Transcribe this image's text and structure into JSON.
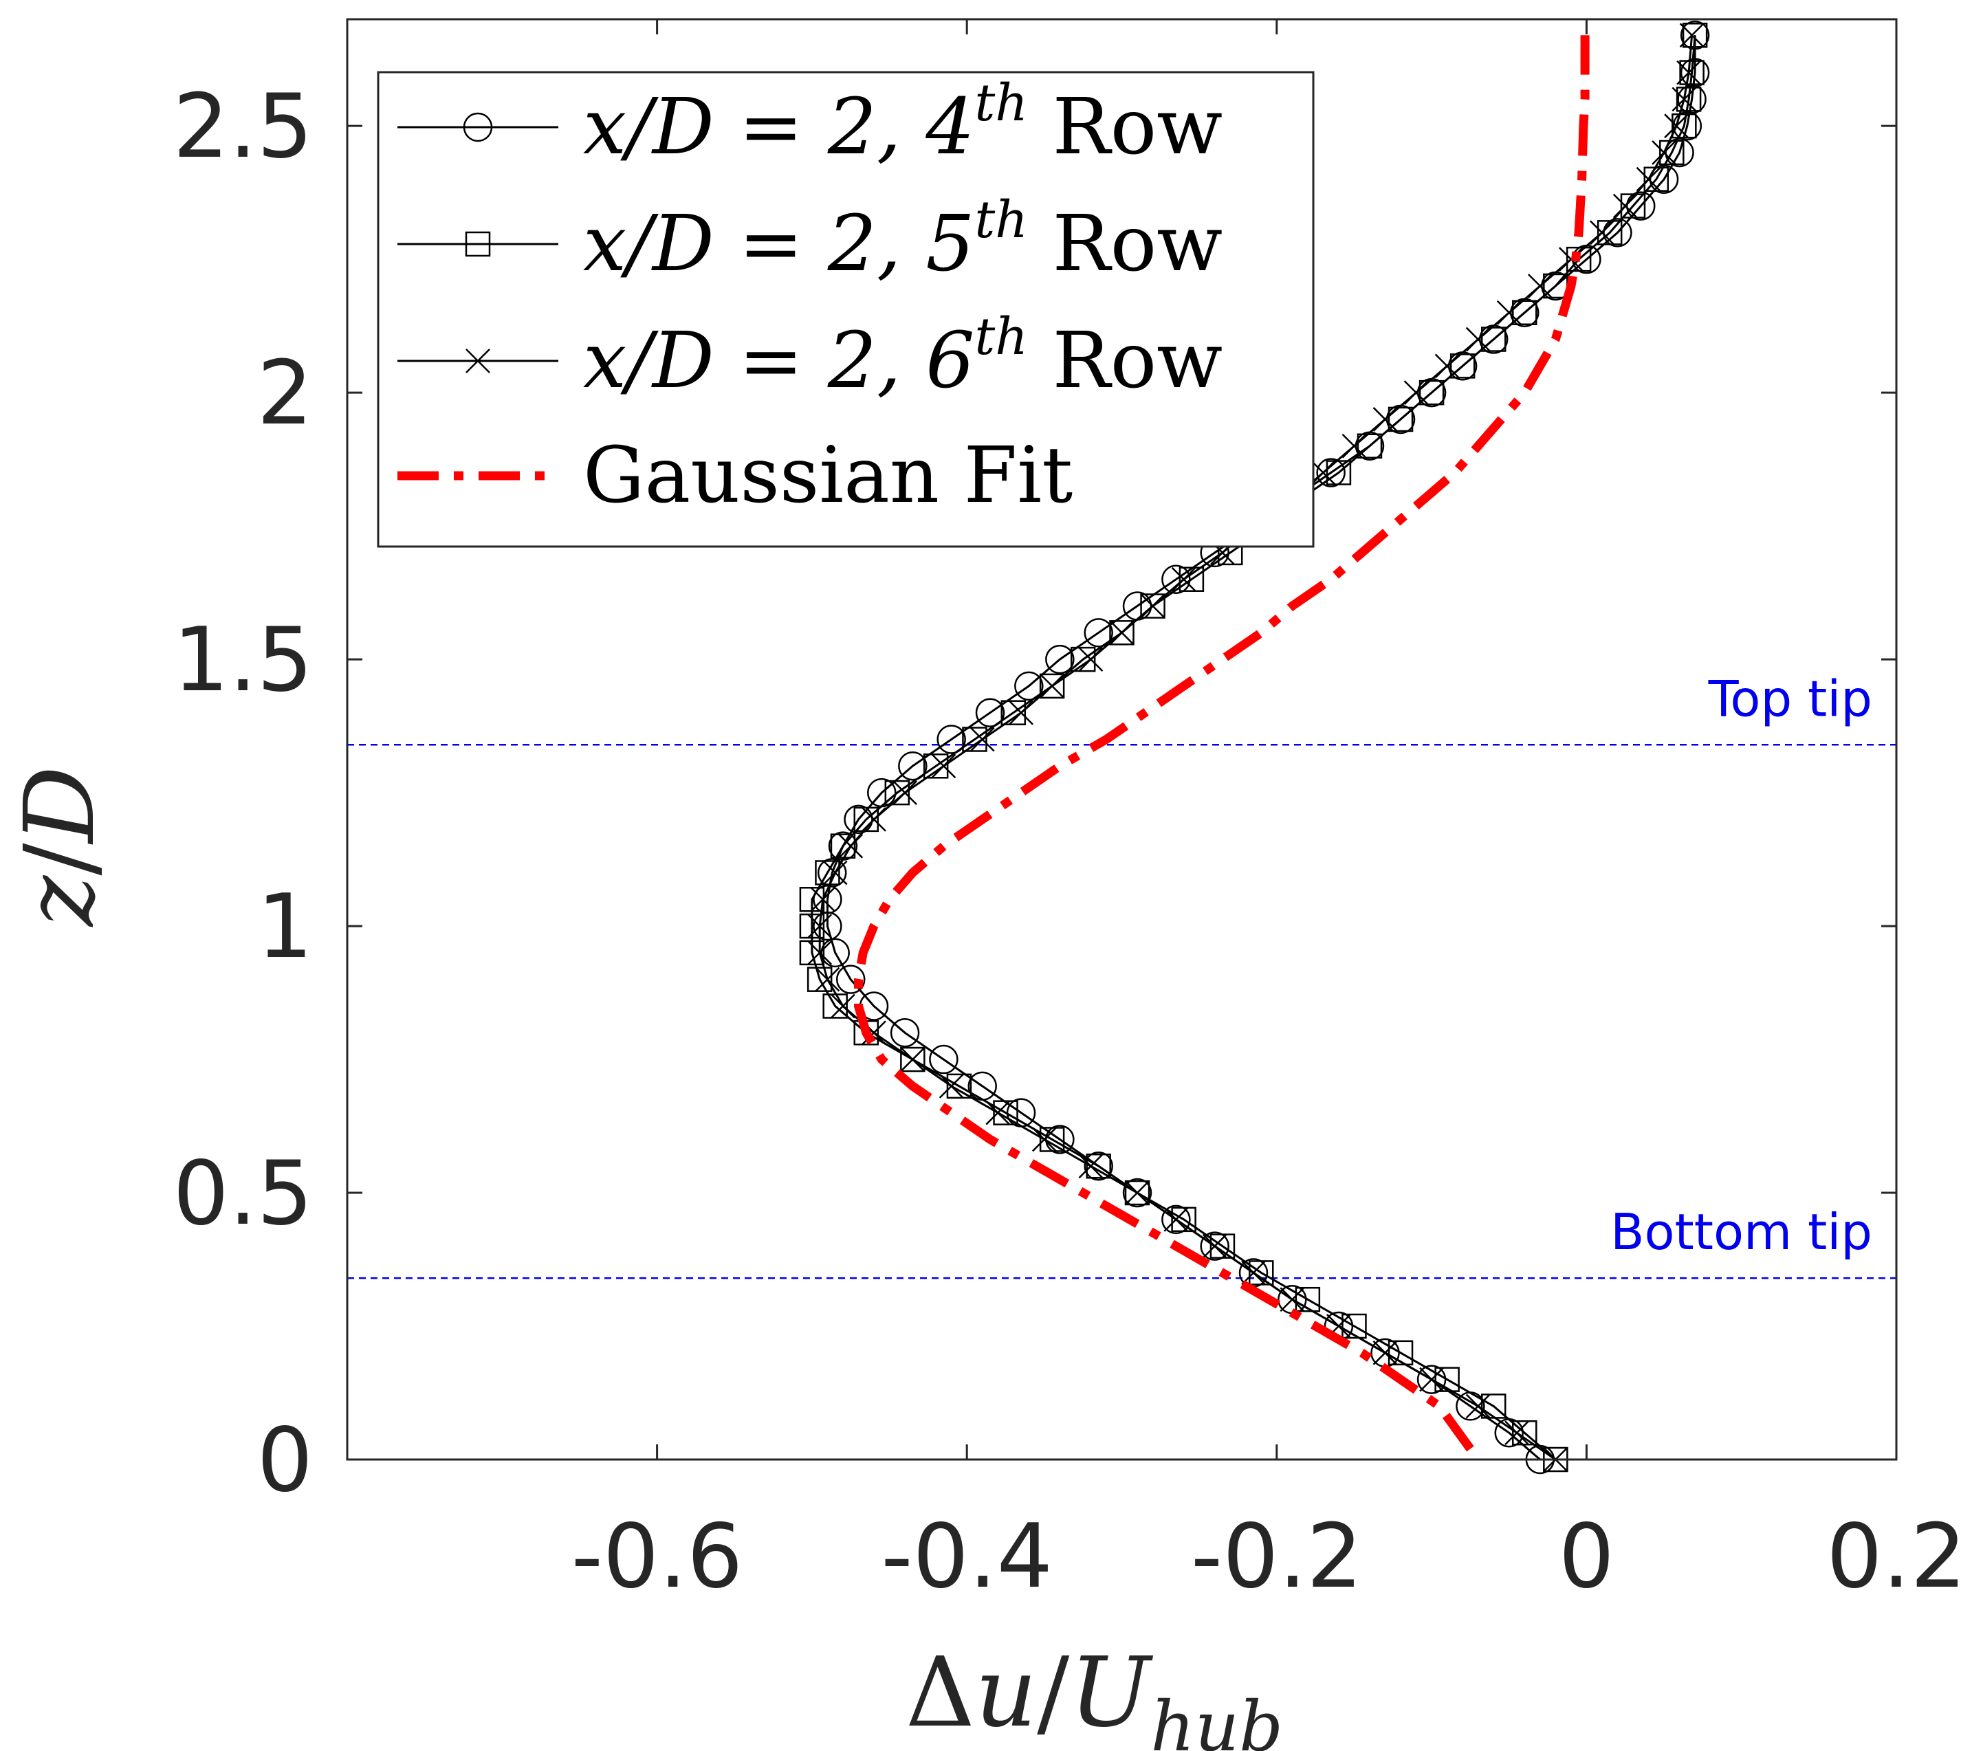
{
  "chart_data": {
    "type": "line",
    "title": "",
    "xlabel": "Δu/U_hub",
    "ylabel": "z/D",
    "xlabel_parts": {
      "main": "Δ",
      "var": "u",
      "slash": "/",
      "base": "U",
      "sub": "hub"
    },
    "ylabel_parts": {
      "num": "z",
      "slash": "/",
      "den": "D"
    },
    "xlim": [
      -0.8,
      0.2
    ],
    "ylim": [
      0,
      2.7
    ],
    "xticks": [
      -0.6,
      -0.4,
      -0.2,
      0,
      0.2
    ],
    "xtick_labels": [
      "-0.6",
      "-0.4",
      "-0.2",
      "0",
      "0.2"
    ],
    "yticks": [
      0,
      0.5,
      1,
      1.5,
      2,
      2.5
    ],
    "ytick_labels": [
      "0",
      "0.5",
      "1",
      "1.5",
      "2",
      "2.5"
    ],
    "grid": false,
    "legend_position": "top-left",
    "reference_lines": [
      {
        "name": "top-tip",
        "label": "Top tip",
        "y": 1.34,
        "color": "#0000ee"
      },
      {
        "name": "bottom-tip",
        "label": "Bottom tip",
        "y": 0.34,
        "color": "#0000ee"
      }
    ],
    "series": [
      {
        "name": "x/D = 2, 4th Row",
        "legend": {
          "pre": "x/D = 2, 4",
          "sup": "th",
          "post": " Row"
        },
        "marker": "circle",
        "color": "#000000",
        "line": "solid",
        "x": [
          -0.03,
          -0.05,
          -0.075,
          -0.1,
          -0.13,
          -0.16,
          -0.19,
          -0.215,
          -0.24,
          -0.265,
          -0.29,
          -0.315,
          -0.34,
          -0.365,
          -0.39,
          -0.415,
          -0.44,
          -0.46,
          -0.475,
          -0.485,
          -0.49,
          -0.49,
          -0.487,
          -0.48,
          -0.47,
          -0.455,
          -0.435,
          -0.41,
          -0.385,
          -0.36,
          -0.34,
          -0.315,
          -0.29,
          -0.265,
          -0.24,
          -0.215,
          -0.19,
          -0.165,
          -0.14,
          -0.12,
          -0.1,
          -0.08,
          -0.06,
          -0.04,
          -0.02,
          0.0,
          0.02,
          0.035,
          0.05,
          0.06,
          0.065,
          0.068,
          0.07,
          0.07
        ],
        "y": [
          0.0,
          0.05,
          0.1,
          0.15,
          0.2,
          0.25,
          0.3,
          0.35,
          0.4,
          0.45,
          0.5,
          0.55,
          0.6,
          0.65,
          0.7,
          0.75,
          0.8,
          0.85,
          0.9,
          0.95,
          1.0,
          1.05,
          1.1,
          1.15,
          1.2,
          1.25,
          1.3,
          1.35,
          1.4,
          1.45,
          1.5,
          1.55,
          1.6,
          1.65,
          1.7,
          1.75,
          1.8,
          1.85,
          1.9,
          1.95,
          2.0,
          2.05,
          2.1,
          2.15,
          2.2,
          2.25,
          2.3,
          2.35,
          2.4,
          2.45,
          2.5,
          2.55,
          2.6,
          2.67
        ]
      },
      {
        "name": "x/D = 2, 5th Row",
        "legend": {
          "pre": "x/D = 2, 5",
          "sup": "th",
          "post": " Row"
        },
        "marker": "square",
        "color": "#000000",
        "line": "solid",
        "x": [
          -0.02,
          -0.04,
          -0.06,
          -0.09,
          -0.12,
          -0.15,
          -0.18,
          -0.21,
          -0.235,
          -0.26,
          -0.29,
          -0.315,
          -0.345,
          -0.375,
          -0.405,
          -0.435,
          -0.465,
          -0.485,
          -0.495,
          -0.5,
          -0.5,
          -0.5,
          -0.49,
          -0.48,
          -0.465,
          -0.445,
          -0.42,
          -0.395,
          -0.37,
          -0.345,
          -0.325,
          -0.3,
          -0.28,
          -0.255,
          -0.23,
          -0.205,
          -0.185,
          -0.16,
          -0.14,
          -0.12,
          -0.1,
          -0.08,
          -0.06,
          -0.04,
          -0.02,
          -0.005,
          0.015,
          0.03,
          0.045,
          0.055,
          0.063,
          0.066,
          0.068,
          0.07
        ],
        "y": [
          0.0,
          0.05,
          0.1,
          0.15,
          0.2,
          0.25,
          0.3,
          0.35,
          0.4,
          0.45,
          0.5,
          0.55,
          0.6,
          0.65,
          0.7,
          0.75,
          0.8,
          0.85,
          0.9,
          0.95,
          1.0,
          1.05,
          1.1,
          1.15,
          1.2,
          1.25,
          1.3,
          1.35,
          1.4,
          1.45,
          1.5,
          1.55,
          1.6,
          1.65,
          1.7,
          1.75,
          1.8,
          1.85,
          1.9,
          1.95,
          2.0,
          2.05,
          2.1,
          2.15,
          2.2,
          2.25,
          2.3,
          2.35,
          2.4,
          2.45,
          2.5,
          2.55,
          2.6,
          2.67
        ]
      },
      {
        "name": "x/D = 2, 6th Row",
        "legend": {
          "pre": "x/D = 2, 6",
          "sup": "th",
          "post": " Row"
        },
        "marker": "x",
        "color": "#000000",
        "line": "solid",
        "x": [
          -0.02,
          -0.045,
          -0.07,
          -0.1,
          -0.13,
          -0.16,
          -0.19,
          -0.215,
          -0.24,
          -0.265,
          -0.29,
          -0.32,
          -0.35,
          -0.38,
          -0.41,
          -0.435,
          -0.46,
          -0.48,
          -0.49,
          -0.495,
          -0.495,
          -0.493,
          -0.485,
          -0.475,
          -0.46,
          -0.44,
          -0.415,
          -0.39,
          -0.365,
          -0.345,
          -0.32,
          -0.3,
          -0.28,
          -0.26,
          -0.235,
          -0.215,
          -0.19,
          -0.17,
          -0.15,
          -0.13,
          -0.11,
          -0.09,
          -0.07,
          -0.05,
          -0.03,
          -0.01,
          0.01,
          0.025,
          0.04,
          0.05,
          0.058,
          0.063,
          0.066,
          0.068
        ],
        "y": [
          0.0,
          0.05,
          0.1,
          0.15,
          0.2,
          0.25,
          0.3,
          0.35,
          0.4,
          0.45,
          0.5,
          0.55,
          0.6,
          0.65,
          0.7,
          0.75,
          0.8,
          0.85,
          0.9,
          0.95,
          1.0,
          1.05,
          1.1,
          1.15,
          1.2,
          1.25,
          1.3,
          1.35,
          1.4,
          1.45,
          1.5,
          1.55,
          1.6,
          1.65,
          1.7,
          1.75,
          1.8,
          1.85,
          1.9,
          1.95,
          2.0,
          2.05,
          2.1,
          2.15,
          2.2,
          2.25,
          2.3,
          2.35,
          2.4,
          2.45,
          2.5,
          2.55,
          2.6,
          2.67
        ]
      },
      {
        "name": "Gaussian Fit",
        "legend": {
          "pre": "Gaussian Fit",
          "sup": "",
          "post": ""
        },
        "marker": "none",
        "color": "#ff0000",
        "line": "dashdot",
        "x": [
          -0.075,
          -0.095,
          -0.12,
          -0.145,
          -0.175,
          -0.205,
          -0.235,
          -0.265,
          -0.295,
          -0.325,
          -0.355,
          -0.385,
          -0.41,
          -0.435,
          -0.455,
          -0.465,
          -0.47,
          -0.47,
          -0.467,
          -0.46,
          -0.45,
          -0.435,
          -0.415,
          -0.39,
          -0.365,
          -0.34,
          -0.31,
          -0.285,
          -0.26,
          -0.235,
          -0.21,
          -0.19,
          -0.165,
          -0.145,
          -0.125,
          -0.105,
          -0.085,
          -0.07,
          -0.055,
          -0.04,
          -0.03,
          -0.02,
          -0.015,
          -0.01,
          -0.007,
          -0.005,
          -0.003,
          -0.002,
          -0.001,
          -0.001,
          -0.001
        ],
        "y": [
          0.02,
          0.1,
          0.15,
          0.2,
          0.25,
          0.3,
          0.35,
          0.4,
          0.45,
          0.5,
          0.55,
          0.6,
          0.65,
          0.7,
          0.75,
          0.8,
          0.85,
          0.9,
          0.95,
          1.0,
          1.05,
          1.1,
          1.15,
          1.2,
          1.25,
          1.3,
          1.35,
          1.4,
          1.45,
          1.5,
          1.55,
          1.6,
          1.65,
          1.7,
          1.75,
          1.8,
          1.85,
          1.9,
          1.95,
          2.0,
          2.05,
          2.1,
          2.15,
          2.2,
          2.25,
          2.3,
          2.4,
          2.5,
          2.55,
          2.6,
          2.67
        ]
      }
    ]
  }
}
